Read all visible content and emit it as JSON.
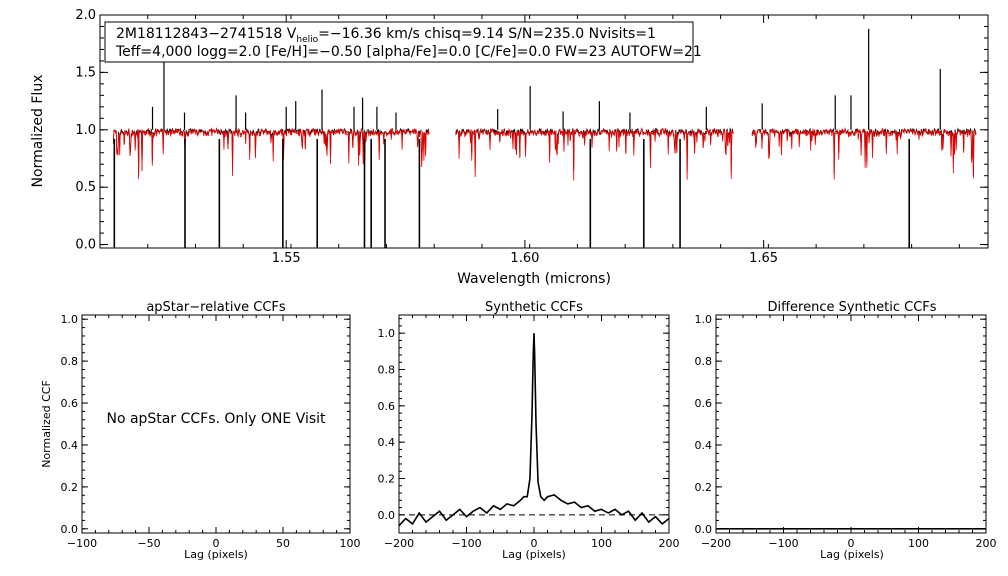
{
  "chart_data": [
    {
      "type": "line",
      "name": "spectrum",
      "xlabel": "Wavelength (microns)",
      "ylabel": "Normalized Flux",
      "xlim": [
        1.511,
        1.697
      ],
      "ylim": [
        -0.03,
        2.0
      ],
      "xticks": [
        {
          "v": 1.55,
          "label": "1.55"
        },
        {
          "v": 1.6,
          "label": "1.60"
        },
        {
          "v": 1.65,
          "label": "1.65"
        }
      ],
      "yticks": [
        {
          "v": 0.0,
          "label": "0.0"
        },
        {
          "v": 0.5,
          "label": "0.5"
        },
        {
          "v": 1.0,
          "label": "1.0"
        },
        {
          "v": 1.5,
          "label": "1.5"
        },
        {
          "v": 2.0,
          "label": "2.0"
        }
      ],
      "info_line1_a": "2M18112843−2741518  V",
      "info_line1_sub": "helio",
      "info_line1_b": "=−16.36 km/s  chisq=9.14  S/N=235.0  Nvisits=1",
      "info_line2": "Teff=4,000 logg=2.0 [Fe/H]=−0.50 [alpha/Fe]=0.0 [C/Fe]=0.0 FW=23 AUTOFW=21",
      "chips": [
        [
          1.5138,
          1.58
        ],
        [
          1.5855,
          1.6437
        ],
        [
          1.6475,
          1.6946
        ]
      ],
      "series": [
        {
          "name": "observed",
          "color": "#000000"
        },
        {
          "name": "synthetic",
          "color": "#ee0000"
        }
      ],
      "absorption_lines": [
        1.514,
        1.5288,
        1.536,
        1.5493,
        1.5565,
        1.5664,
        1.5678,
        1.5707,
        1.5779,
        1.6137,
        1.6249,
        1.6325,
        1.6805
      ],
      "emission_lines": [
        [
          1.5244,
          1.6
        ],
        [
          1.522,
          1.2
        ],
        [
          1.5287,
          1.15
        ],
        [
          1.5395,
          1.3
        ],
        [
          1.5415,
          1.15
        ],
        [
          1.55,
          1.2
        ],
        [
          1.552,
          1.25
        ],
        [
          1.5575,
          1.35
        ],
        [
          1.5642,
          1.2
        ],
        [
          1.566,
          1.28
        ],
        [
          1.569,
          1.2
        ],
        [
          1.573,
          1.15
        ],
        [
          1.6011,
          1.38
        ],
        [
          1.5943,
          1.18
        ],
        [
          1.608,
          1.16
        ],
        [
          1.6156,
          1.25
        ],
        [
          1.622,
          1.15
        ],
        [
          1.638,
          1.2
        ],
        [
          1.6497,
          1.23
        ],
        [
          1.665,
          1.3
        ],
        [
          1.6683,
          1.3
        ],
        [
          1.672,
          1.88
        ],
        [
          1.687,
          1.53
        ]
      ]
    },
    {
      "type": "line",
      "title": "apStar−relative CCFs",
      "xlabel": "Lag (pixels)",
      "ylabel": "Normalized CCF",
      "xlim": [
        -100,
        100
      ],
      "ylim": [
        -0.02,
        1.02
      ],
      "xticks": [
        {
          "v": -100,
          "label": "−100"
        },
        {
          "v": -50,
          "label": "−50"
        },
        {
          "v": 0,
          "label": "0"
        },
        {
          "v": 50,
          "label": "50"
        },
        {
          "v": 100,
          "label": "100"
        }
      ],
      "yticks": [
        {
          "v": 0.0,
          "label": "0.0"
        },
        {
          "v": 0.2,
          "label": "0.2"
        },
        {
          "v": 0.4,
          "label": "0.4"
        },
        {
          "v": 0.6,
          "label": "0.6"
        },
        {
          "v": 0.8,
          "label": "0.8"
        },
        {
          "v": 1.0,
          "label": "1.0"
        }
      ],
      "message": "No apStar CCFs.  Only ONE Visit"
    },
    {
      "type": "line",
      "title": "Synthetic CCFs",
      "xlabel": "Lag (pixels)",
      "xlim": [
        -200,
        200
      ],
      "ylim": [
        -0.1,
        1.1
      ],
      "xticks": [
        {
          "v": -200,
          "label": "−200"
        },
        {
          "v": -100,
          "label": "−100"
        },
        {
          "v": 0,
          "label": "0"
        },
        {
          "v": 100,
          "label": "100"
        },
        {
          "v": 200,
          "label": "200"
        }
      ],
      "yticks": [
        {
          "v": 0.0,
          "label": "0.0"
        },
        {
          "v": 0.2,
          "label": "0.2"
        },
        {
          "v": 0.4,
          "label": "0.4"
        },
        {
          "v": 0.6,
          "label": "0.6"
        },
        {
          "v": 0.8,
          "label": "0.8"
        },
        {
          "v": 1.0,
          "label": "1.0"
        }
      ],
      "baseline": 0.0,
      "x": [
        -200,
        -190,
        -180,
        -170,
        -160,
        -150,
        -140,
        -130,
        -120,
        -110,
        -100,
        -90,
        -80,
        -70,
        -60,
        -50,
        -40,
        -30,
        -20,
        -15,
        -10,
        -6,
        -3,
        -1,
        0,
        1,
        3,
        6,
        10,
        15,
        20,
        30,
        40,
        50,
        60,
        70,
        80,
        90,
        100,
        110,
        120,
        130,
        140,
        150,
        160,
        170,
        180,
        190,
        200
      ],
      "values": [
        -0.06,
        -0.02,
        -0.05,
        0.01,
        -0.04,
        -0.01,
        0.02,
        -0.03,
        0.0,
        0.03,
        -0.01,
        0.02,
        0.04,
        0.01,
        0.05,
        0.03,
        0.06,
        0.05,
        0.08,
        0.1,
        0.1,
        0.2,
        0.55,
        0.9,
        1.0,
        0.88,
        0.5,
        0.18,
        0.1,
        0.08,
        0.1,
        0.11,
        0.08,
        0.06,
        0.07,
        0.04,
        0.05,
        0.02,
        0.03,
        0.01,
        0.03,
        0.0,
        0.02,
        -0.03,
        0.01,
        -0.04,
        -0.01,
        -0.05,
        -0.02
      ]
    },
    {
      "type": "line",
      "title": "Difference Synthetic CCFs",
      "xlabel": "Lag (pixels)",
      "xlim": [
        -200,
        200
      ],
      "ylim": [
        -0.02,
        1.02
      ],
      "xticks": [
        {
          "v": -200,
          "label": "−200"
        },
        {
          "v": -100,
          "label": "−100"
        },
        {
          "v": 0,
          "label": "0"
        },
        {
          "v": 100,
          "label": "100"
        },
        {
          "v": 200,
          "label": "200"
        }
      ],
      "yticks": [
        {
          "v": 0.0,
          "label": "0.0"
        },
        {
          "v": 0.2,
          "label": "0.2"
        },
        {
          "v": 0.4,
          "label": "0.4"
        },
        {
          "v": 0.6,
          "label": "0.6"
        },
        {
          "v": 0.8,
          "label": "0.8"
        },
        {
          "v": 1.0,
          "label": "1.0"
        }
      ],
      "values": [
        0.0
      ]
    }
  ]
}
